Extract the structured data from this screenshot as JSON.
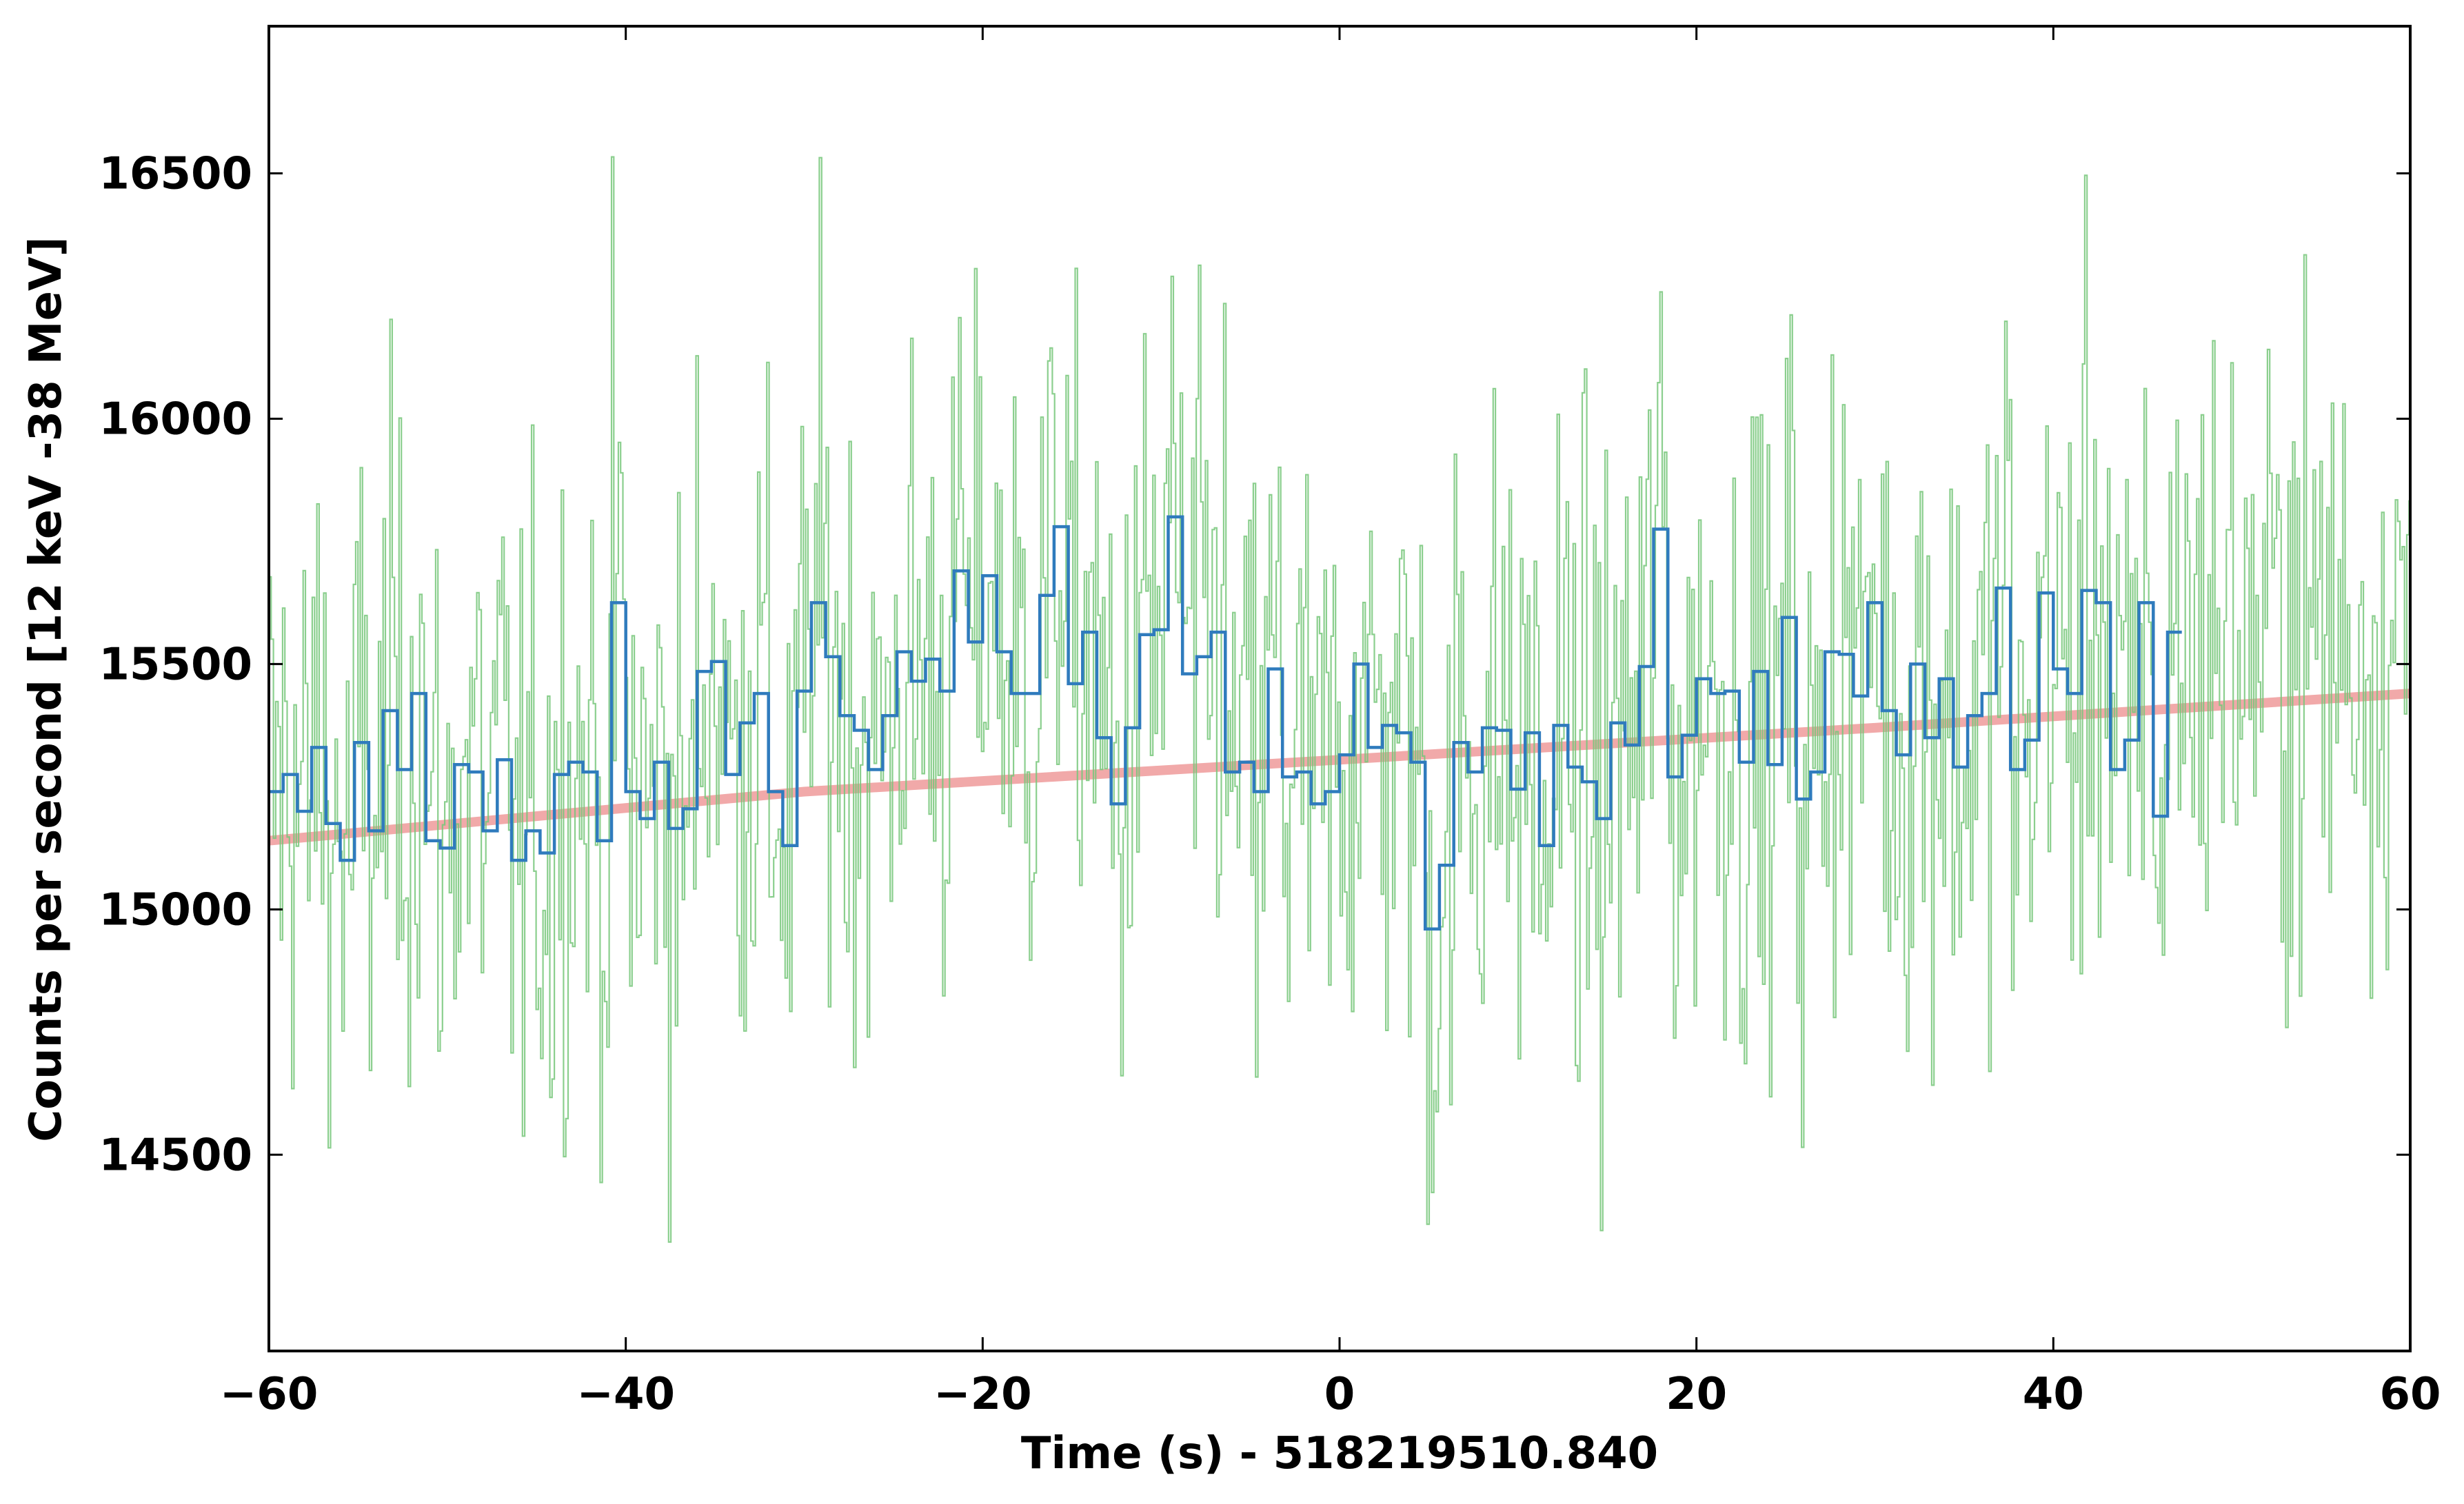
{
  "chart_data": {
    "type": "line",
    "title": "",
    "xlabel": "Time (s) - 518219510.840",
    "ylabel": "Counts per second [12 keV -38 MeV]",
    "xlim": [
      -60,
      60
    ],
    "ylim": [
      14100,
      16800
    ],
    "x_ticks": [
      -60,
      -40,
      -20,
      0,
      20,
      40,
      60
    ],
    "x_tick_labels": [
      "−60",
      "−40",
      "−20",
      "0",
      "20",
      "40",
      "60"
    ],
    "y_ticks": [
      14500,
      15000,
      15500,
      16000,
      16500
    ],
    "y_tick_labels": [
      "14500",
      "15000",
      "15500",
      "16000",
      "16500"
    ],
    "grid": false,
    "legend": "none",
    "series": [
      {
        "style": "step",
        "color": "#2f7bbd",
        "bin_width": 0.8,
        "x_start": -60,
        "values": [
          15240,
          15275,
          15200,
          15330,
          15175,
          15100,
          15340,
          15160,
          15405,
          15285,
          15440,
          15140,
          15125,
          15295,
          15280,
          15160,
          15305,
          15100,
          15160,
          15115,
          15275,
          15300,
          15280,
          15140,
          15625,
          15240,
          15185,
          15300,
          15165,
          15205,
          15485,
          15505,
          15275,
          15380,
          15440,
          15240,
          15130,
          15445,
          15625,
          15515,
          15395,
          15365,
          15285,
          15395,
          15525,
          15465,
          15510,
          15445,
          15690,
          15545,
          15680,
          15525,
          15440,
          15440,
          15640,
          15780,
          15460,
          15565,
          15350,
          15215,
          15370,
          15560,
          15570,
          15800,
          15480,
          15515,
          15565,
          15280,
          15300,
          15240,
          15490,
          15270,
          15280,
          15215,
          15240,
          15315,
          15500,
          15330,
          15375,
          15360,
          15300,
          14960,
          15090,
          15340,
          15280,
          15370,
          15365,
          15245,
          15360,
          15130,
          15375,
          15290,
          15260,
          15185,
          15380,
          15335,
          15495,
          15775,
          15270,
          15355,
          15470,
          15440,
          15445,
          15300,
          15485,
          15295,
          15595,
          15225,
          15280,
          15525,
          15520,
          15435,
          15625,
          15405,
          15315,
          15500,
          15350,
          15470,
          15290,
          15395,
          15440,
          15655,
          15285,
          15345,
          15645,
          15490,
          15440,
          15650,
          15625,
          15285,
          15345,
          15625,
          15190,
          15565
        ]
      },
      {
        "style": "step-thin",
        "color": "#77c77a",
        "note_level": "noisy",
        "x_start": -60,
        "bin_width": 0.128
      },
      {
        "style": "trend",
        "color": "#ef9a9a",
        "x": [
          -60,
          -30,
          0,
          30,
          60
        ],
        "values": [
          15140,
          15240,
          15305,
          15370,
          15440
        ]
      }
    ]
  }
}
